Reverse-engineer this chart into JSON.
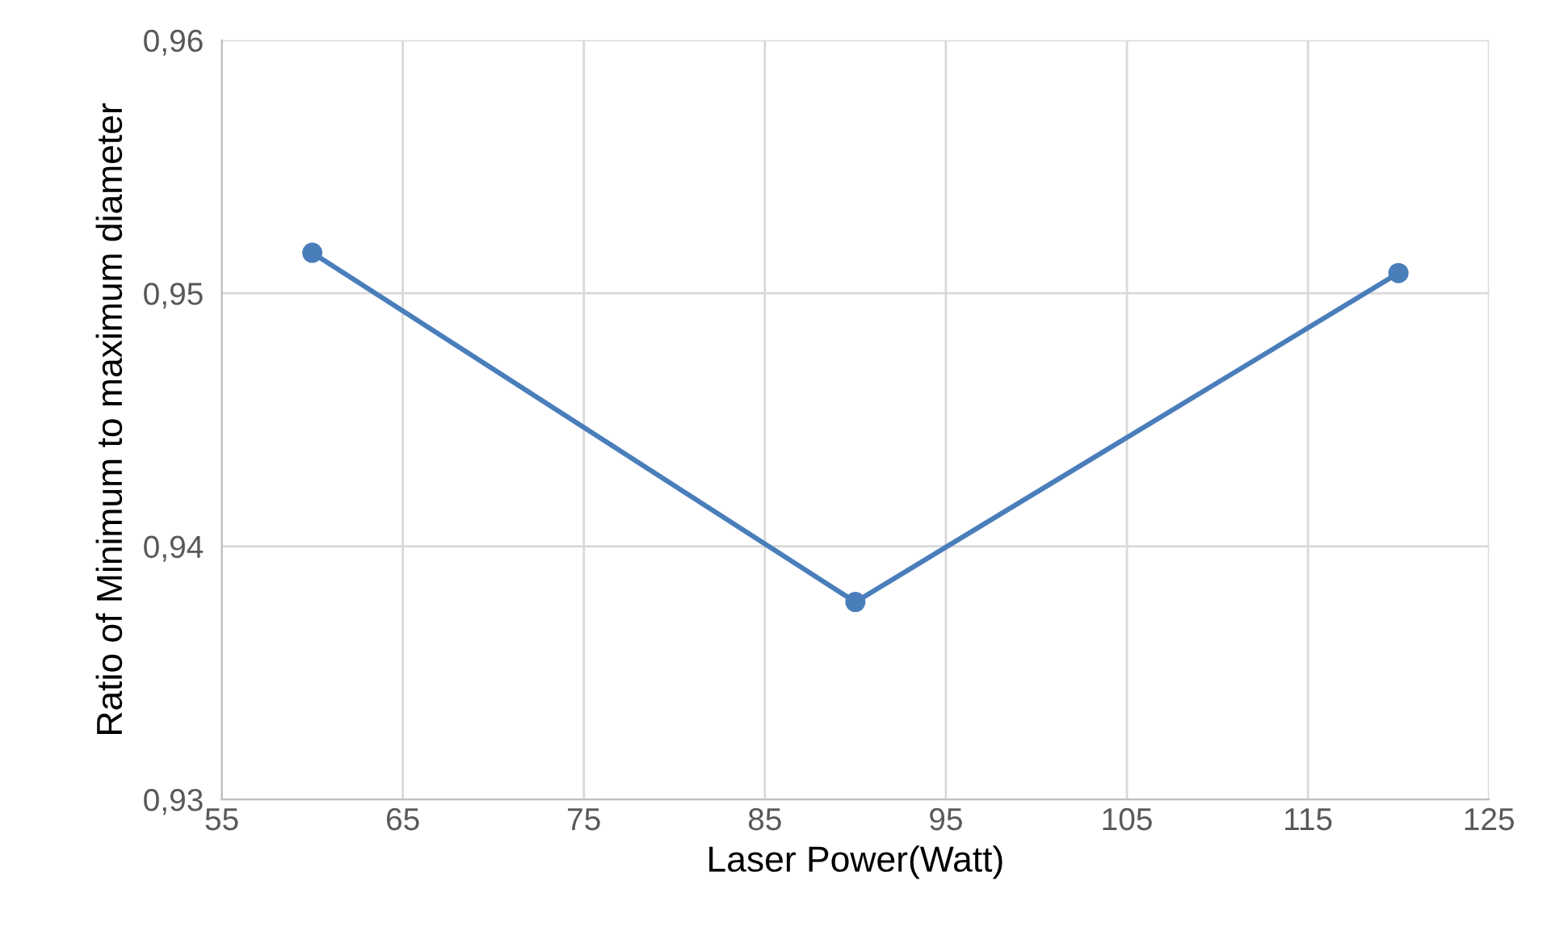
{
  "chart_data": {
    "type": "line",
    "xlabel": "Laser Power(Watt)",
    "ylabel": "Ratio of Minimum to maximum diameter",
    "x": [
      60,
      90,
      120
    ],
    "series": [
      {
        "color": "#4a7ebb",
        "values": [
          0.9516,
          0.9378,
          0.9508
        ]
      }
    ],
    "xlim": [
      55,
      125
    ],
    "xticks": [
      55,
      65,
      75,
      85,
      95,
      105,
      115,
      125
    ],
    "ylim": [
      0.93,
      0.96
    ],
    "yticks": [
      {
        "value": 0.93,
        "label": "0,93"
      },
      {
        "value": 0.94,
        "label": "0,94"
      },
      {
        "value": 0.95,
        "label": "0,95"
      },
      {
        "value": 0.96,
        "label": "0,96"
      }
    ],
    "grid": true,
    "marker": "circle",
    "line_style": "solid"
  }
}
